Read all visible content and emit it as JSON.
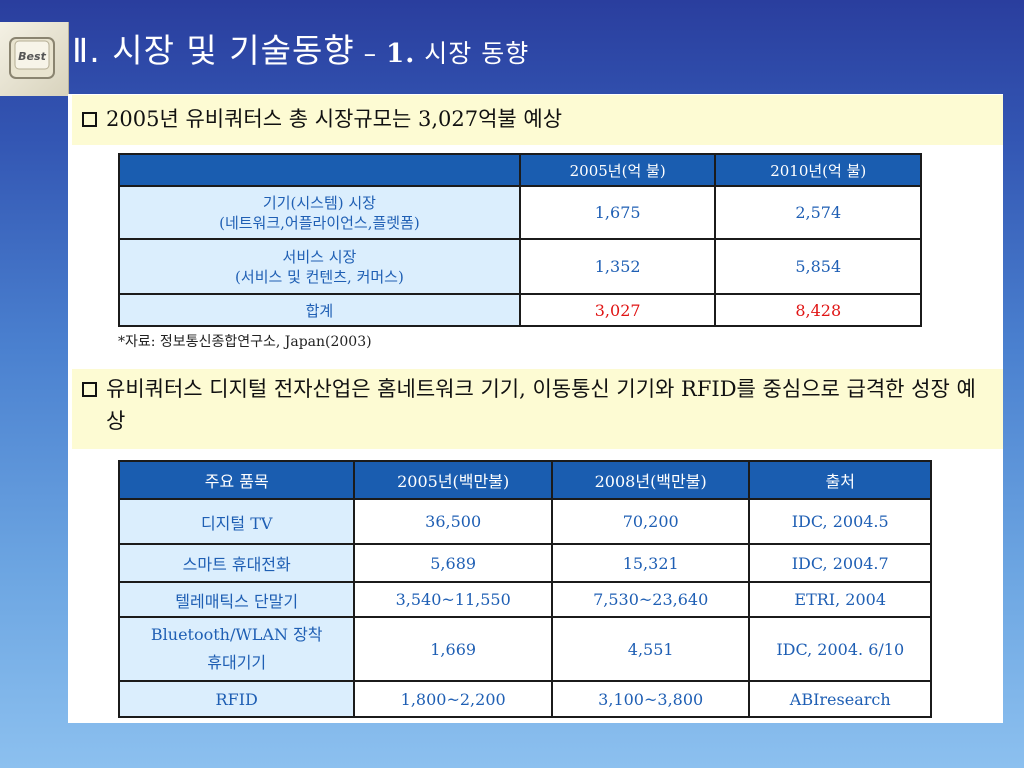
{
  "slide": {
    "title_main": "Ⅱ. 시장 및 기술동향",
    "title_dash": " – ",
    "title_num": "1.",
    "title_sub": " 시장 동향",
    "logo_text": "Best"
  },
  "bullet1": {
    "text": "2005년 유비쿼터스 총 시장규모는 3,027억불 예상"
  },
  "table1": {
    "headers": [
      "",
      "2005년(억 불)",
      "2010년(억 불)"
    ],
    "rows": [
      {
        "label_line1": "기기(시스템) 시장",
        "label_line2": "(네트워크,어플라이언스,플렛폼)",
        "v2005": "1,675",
        "v2010": "2,574"
      },
      {
        "label_line1": "서비스 시장",
        "label_line2": "(서비스 및 컨텐츠, 커머스)",
        "v2005": "1,352",
        "v2010": "5,854"
      },
      {
        "label_line1": "합계",
        "label_line2": "",
        "v2005": "3,027",
        "v2010": "8,428"
      }
    ]
  },
  "source1": "*자료: 정보통신종합연구소, Japan(2003)",
  "bullet2": {
    "text": "유비쿼터스 디지털 전자산업은 홈네트워크 기기, 이동통신 기기와 RFID를 중심으로 급격한 성장 예상"
  },
  "table2": {
    "headers": [
      "주요 품목",
      "2005년(백만불)",
      "2008년(백만불)",
      "출처"
    ],
    "rows": [
      {
        "item": "디지털 TV",
        "item2": "",
        "v2005": "36,500",
        "v2008": "70,200",
        "source": "IDC, 2004.5"
      },
      {
        "item": "스마트 휴대전화",
        "item2": "",
        "v2005": "5,689",
        "v2008": "15,321",
        "source": "IDC, 2004.7"
      },
      {
        "item": "텔레매틱스 단말기",
        "item2": "",
        "v2005": "3,540~11,550",
        "v2008": "7,530~23,640",
        "source": "ETRI, 2004"
      },
      {
        "item": "Bluetooth/WLAN 장착",
        "item2": "휴대기기",
        "v2005": "1,669",
        "v2008": "4,551",
        "source": "IDC, 2004. 6/10"
      },
      {
        "item": "RFID",
        "item2": "",
        "v2005": "1,800~2,200",
        "v2008": "3,100~3,800",
        "source": "ABIresearch"
      }
    ]
  },
  "colors": {
    "header_bg": "#1a5db0",
    "label_bg": "#dbeefd",
    "text_blue": "#1f5fb4",
    "total_red": "#e01515",
    "bullet_bg": "#fdfbd3"
  }
}
